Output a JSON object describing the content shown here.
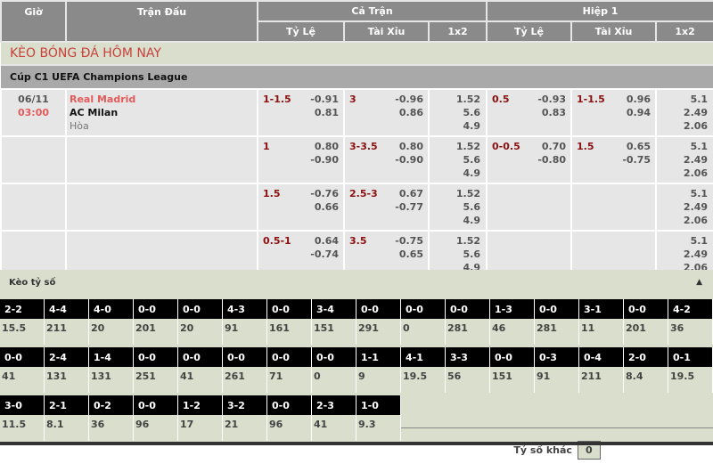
{
  "header": {
    "time": "Giờ",
    "match": "Trận Đấu",
    "full": "Cả Trận",
    "half": "Hiệp 1",
    "handicap": "Tỷ Lệ",
    "ou": "Tài Xỉu",
    "x12": "1x2"
  },
  "title": "KÈO BÓNG ĐÁ HÔM NAY",
  "league": "Cúp C1 UEFA Champions League",
  "match": {
    "date": "06/11",
    "time": "03:00",
    "home": "Real Madrid",
    "away": "AC Milan",
    "draw": "Hòa"
  },
  "rows": [
    {
      "ft_hc": "1-1.5",
      "ft_hc_v": [
        "-0.91",
        "0.81"
      ],
      "ft_ou": "3",
      "ft_ou_v": [
        "-0.96",
        "0.86"
      ],
      "ft_x": [
        "1.52",
        "5.6",
        "4.9"
      ],
      "h1_hc": "0.5",
      "h1_hc_v": [
        "-0.93",
        "0.83"
      ],
      "h1_ou": "1-1.5",
      "h1_ou_v": [
        "0.96",
        "0.94"
      ],
      "h1_x": [
        "5.1",
        "2.49",
        "2.06"
      ]
    },
    {
      "ft_hc": "1",
      "ft_hc_v": [
        "0.80",
        "-0.90"
      ],
      "ft_ou": "3-3.5",
      "ft_ou_v": [
        "0.80",
        "-0.90"
      ],
      "ft_x": [
        "1.52",
        "5.6",
        "4.9"
      ],
      "h1_hc": "0-0.5",
      "h1_hc_v": [
        "0.70",
        "-0.80"
      ],
      "h1_ou": "1.5",
      "h1_ou_v": [
        "0.65",
        "-0.75"
      ],
      "h1_x": [
        "5.1",
        "2.49",
        "2.06"
      ]
    },
    {
      "ft_hc": "1.5",
      "ft_hc_v": [
        "-0.76",
        "0.66"
      ],
      "ft_ou": "2.5-3",
      "ft_ou_v": [
        "0.67",
        "-0.77"
      ],
      "ft_x": [
        "1.52",
        "5.6",
        "4.9"
      ],
      "h1_hc": "",
      "h1_hc_v": [
        "",
        ""
      ],
      "h1_ou": "",
      "h1_ou_v": [
        "",
        ""
      ],
      "h1_x": [
        "5.1",
        "2.49",
        "2.06"
      ]
    },
    {
      "ft_hc": "0.5-1",
      "ft_hc_v": [
        "0.64",
        "-0.74"
      ],
      "ft_ou": "3.5",
      "ft_ou_v": [
        "-0.75",
        "0.65"
      ],
      "ft_x": [
        "1.52",
        "5.6",
        "4.9"
      ],
      "h1_hc": "",
      "h1_hc_v": [
        "",
        ""
      ],
      "h1_ou": "",
      "h1_ou_v": [
        "",
        ""
      ],
      "h1_x": [
        "5.1",
        "2.49",
        "2.06"
      ]
    }
  ],
  "correct_score": {
    "title": "Kèo tỷ số",
    "collapse_icon": "caret-up-icon",
    "rows": [
      [
        [
          "2-2",
          "15.5"
        ],
        [
          "4-4",
          "211"
        ],
        [
          "4-0",
          "20"
        ],
        [
          "0-0",
          "201"
        ],
        [
          "0-0",
          "20"
        ],
        [
          "4-3",
          "91"
        ],
        [
          "0-0",
          "161"
        ],
        [
          "3-4",
          "151"
        ],
        [
          "0-0",
          "291"
        ],
        [
          "0-0",
          "0"
        ],
        [
          "0-0",
          "281"
        ],
        [
          "1-3",
          "46"
        ],
        [
          "0-0",
          "281"
        ],
        [
          "3-1",
          "11"
        ],
        [
          "0-0",
          "201"
        ],
        [
          "4-2",
          "36"
        ]
      ],
      [
        [
          "0-0",
          "41"
        ],
        [
          "2-4",
          "131"
        ],
        [
          "1-4",
          "131"
        ],
        [
          "0-0",
          "251"
        ],
        [
          "0-0",
          "41"
        ],
        [
          "0-0",
          "261"
        ],
        [
          "0-0",
          "71"
        ],
        [
          "0-0",
          "0"
        ],
        [
          "1-1",
          "9"
        ],
        [
          "4-1",
          "19.5"
        ],
        [
          "3-3",
          "56"
        ],
        [
          "0-0",
          "151"
        ],
        [
          "0-3",
          "91"
        ],
        [
          "0-4",
          "211"
        ],
        [
          "2-0",
          "8.4"
        ],
        [
          "0-1",
          "19.5"
        ]
      ],
      [
        [
          "3-0",
          "11.5"
        ],
        [
          "2-1",
          "8.1"
        ],
        [
          "0-2",
          "36"
        ],
        [
          "0-0",
          "96"
        ],
        [
          "1-2",
          "17"
        ],
        [
          "3-2",
          "21"
        ],
        [
          "0-0",
          "96"
        ],
        [
          "2-3",
          "41"
        ],
        [
          "1-0",
          "9.3"
        ]
      ]
    ],
    "other_label": "Tỷ số khác",
    "other_value": "0"
  }
}
